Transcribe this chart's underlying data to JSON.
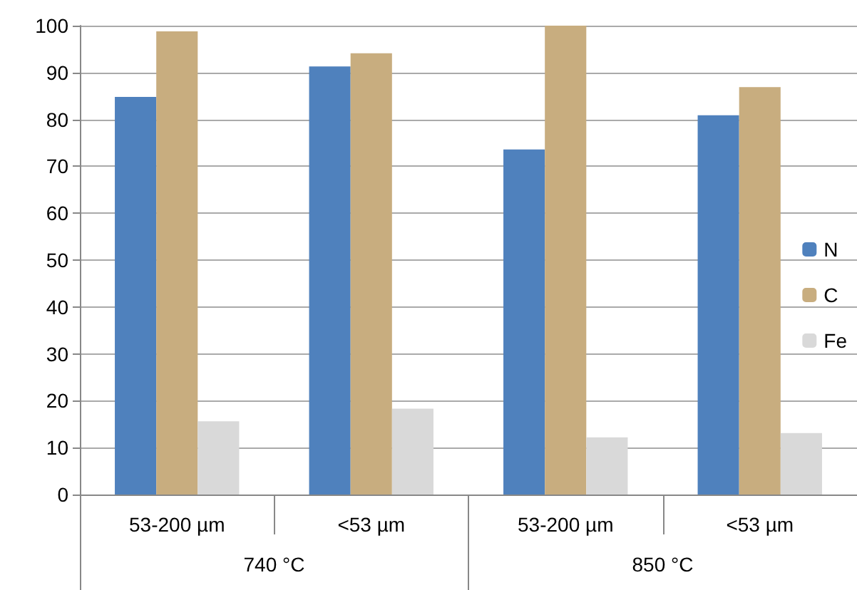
{
  "chart_data": {
    "type": "bar",
    "categories": [
      "53-200 µm",
      "<53 µm",
      "53-200 µm",
      "<53 µm"
    ],
    "series": [
      {
        "name": "N",
        "color": "#4f81bd",
        "values": [
          84.8,
          91.3,
          73.6,
          80.9
        ]
      },
      {
        "name": "C",
        "color": "#c8ad7f",
        "values": [
          98.8,
          94.1,
          100,
          86.9
        ]
      },
      {
        "name": "Fe",
        "color": "#d9d9d9",
        "values": [
          15.6,
          18.3,
          12.2,
          13.1
        ]
      }
    ],
    "annotations": [
      "740 °C",
      "850 °C"
    ],
    "ylim": [
      0,
      100
    ],
    "yticks": [
      0,
      10,
      20,
      30,
      40,
      50,
      60,
      70,
      80,
      90,
      100
    ],
    "grid": "y",
    "legend": "right"
  }
}
